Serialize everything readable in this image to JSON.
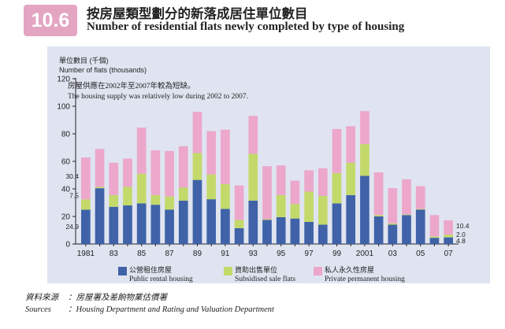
{
  "header": {
    "figure_number": "10.6",
    "title_zh": "按房屋類型劃分的新落成居住單位數目",
    "title_en": "Number of residential flats newly completed by type of housing"
  },
  "chart_data": {
    "type": "bar",
    "stacked": true,
    "title": "按房屋類型劃分的新落成居住單位數目 / Number of residential flats newly completed by type of housing",
    "ylabel_zh": "單位數目 (千個)",
    "ylabel_en": "Number of flats (thousands)",
    "ylim": [
      0,
      120
    ],
    "yticks": [
      0,
      20,
      40,
      60,
      80,
      100,
      120
    ],
    "grid": false,
    "categories": [
      "1981",
      "1982",
      "1983",
      "1984",
      "1985",
      "1986",
      "1987",
      "1988",
      "1989",
      "1990",
      "1991",
      "1992",
      "1993",
      "1994",
      "1995",
      "1996",
      "1997",
      "1998",
      "1999",
      "2000",
      "2001",
      "2002",
      "2003",
      "2004",
      "2005",
      "2006",
      "2007"
    ],
    "tick_labels": [
      "1981",
      "",
      "83",
      "",
      "85",
      "",
      "87",
      "",
      "89",
      "",
      "91",
      "",
      "93",
      "",
      "95",
      "",
      "97",
      "",
      "99",
      "",
      "2001",
      "",
      "03",
      "",
      "05",
      "",
      "07"
    ],
    "series": [
      {
        "name_zh": "公營租住房屋",
        "name_en": "Public rental housing",
        "color": "#3f62a8",
        "values": [
          24.9,
          40.5,
          27.0,
          28.0,
          29.5,
          28.5,
          25.0,
          31.5,
          46.5,
          32.5,
          25.5,
          11.5,
          31.5,
          17.5,
          19.5,
          18.5,
          16.0,
          14.0,
          29.5,
          35.5,
          49.5,
          20.0,
          14.0,
          21.0,
          25.0,
          4.5,
          4.8
        ]
      },
      {
        "name_zh": "資助出售單位",
        "name_en": "Subsidised sale flats",
        "color": "#c3d96a",
        "values": [
          7.5,
          1.0,
          8.5,
          13.5,
          21.5,
          7.0,
          9.5,
          9.5,
          19.5,
          18.0,
          18.0,
          6.0,
          34.0,
          0.5,
          16.0,
          10.5,
          22.0,
          21.0,
          22.0,
          23.5,
          23.0,
          1.0,
          1.0,
          0.5,
          0.5,
          1.0,
          2.0
        ]
      },
      {
        "name_zh": "私人永久性房屋",
        "name_en": "Private permanent housing",
        "color": "#eca7cb",
        "values": [
          30.4,
          27.5,
          23.5,
          20.5,
          33.5,
          32.5,
          33.0,
          30.0,
          30.0,
          31.5,
          39.5,
          25.0,
          27.5,
          38.5,
          21.5,
          17.0,
          15.5,
          20.0,
          32.0,
          26.5,
          24.0,
          31.0,
          25.5,
          25.5,
          16.5,
          15.5,
          10.4
        ]
      }
    ],
    "data_labels": {
      "1981": [
        "24.9",
        "7.5",
        "30.4"
      ],
      "2007": [
        "4.8",
        "2.0",
        "10.4"
      ]
    },
    "annotation_zh": "房屋供應在2002年至2007年較為短缺。",
    "annotation_en": "The housing supply was relatively low during 2002 to 2007.",
    "legend_position": "bottom"
  },
  "sources": {
    "label_zh": "資料來源",
    "text_zh": "：房屋署及差餉物業估價署",
    "label_en": "Sources",
    "text_en": "：Housing Department and Rating and Valuation Department"
  }
}
